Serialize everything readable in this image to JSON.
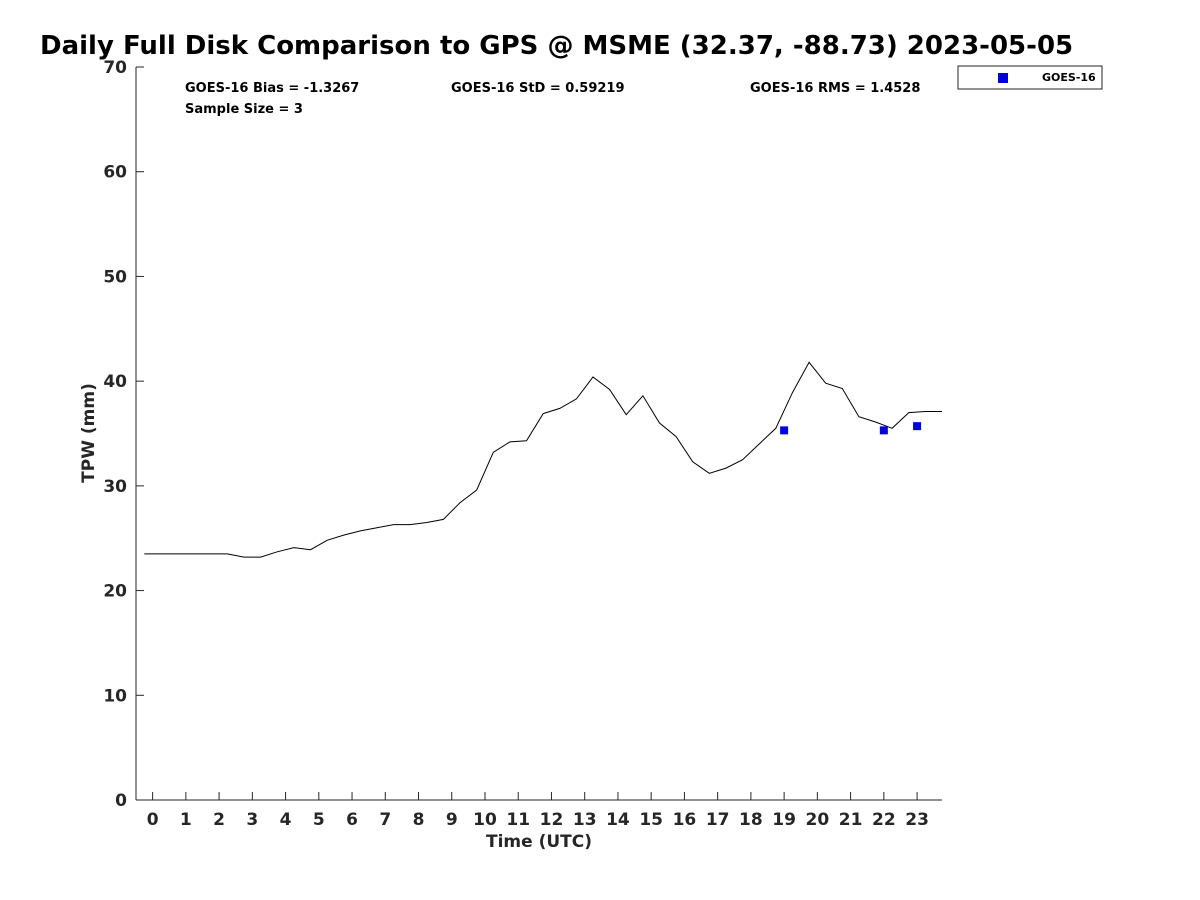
{
  "chart_data": {
    "type": "line",
    "title": "Daily Full Disk Comparison to GPS @ MSME (32.37, -88.73) 2023-05-05",
    "xlabel": "Time (UTC)",
    "ylabel": "TPW (mm)",
    "xlim": [
      -0.5,
      23.75
    ],
    "ylim": [
      0,
      70
    ],
    "x_ticks": [
      0,
      1,
      2,
      3,
      4,
      5,
      6,
      7,
      8,
      9,
      10,
      11,
      12,
      13,
      14,
      15,
      16,
      17,
      18,
      19,
      20,
      21,
      22,
      23
    ],
    "y_ticks": [
      0,
      10,
      20,
      30,
      40,
      50,
      60,
      70
    ],
    "grid": false,
    "legend_position": "outside-top-right",
    "stats": {
      "bias": "GOES-16 Bias = -1.3267",
      "std": "GOES-16 StD = 0.59219",
      "rms": "GOES-16 RMS = 1.4528",
      "sample": "Sample Size = 3"
    },
    "series": [
      {
        "kind": "line",
        "color": "#000000",
        "x": [
          -0.25,
          0.25,
          0.75,
          1.25,
          1.75,
          2.25,
          2.75,
          3.25,
          3.75,
          4.25,
          4.75,
          5.25,
          5.75,
          6.25,
          6.75,
          7.25,
          7.75,
          8.25,
          8.75,
          9.25,
          9.75,
          10.25,
          10.75,
          11.25,
          11.75,
          12.25,
          12.75,
          13.25,
          13.75,
          14.25,
          14.75,
          15.25,
          15.75,
          16.25,
          16.75,
          17.25,
          17.75,
          18.25,
          18.75,
          19.25,
          19.75,
          20.25,
          20.75,
          21.25,
          21.75,
          22.25,
          22.75,
          23.25,
          23.75
        ],
        "values": [
          23.5,
          23.5,
          23.5,
          23.5,
          23.5,
          23.5,
          23.2,
          23.2,
          23.7,
          24.1,
          23.9,
          24.8,
          25.3,
          25.7,
          26.0,
          26.3,
          26.3,
          26.5,
          26.8,
          28.4,
          29.6,
          33.2,
          34.2,
          34.3,
          36.9,
          37.4,
          38.3,
          40.4,
          39.2,
          36.8,
          38.6,
          36.0,
          34.7,
          32.3,
          31.2,
          31.7,
          32.5,
          34.0,
          35.5,
          38.9,
          41.8,
          39.8,
          39.3,
          36.6,
          36.1,
          35.5,
          37.0,
          37.1,
          37.1
        ]
      },
      {
        "kind": "scatter",
        "name": "GOES-16",
        "color": "#0000dd",
        "x": [
          19.0,
          22.0,
          23.0
        ],
        "values": [
          35.3,
          35.3,
          35.7
        ]
      }
    ]
  }
}
